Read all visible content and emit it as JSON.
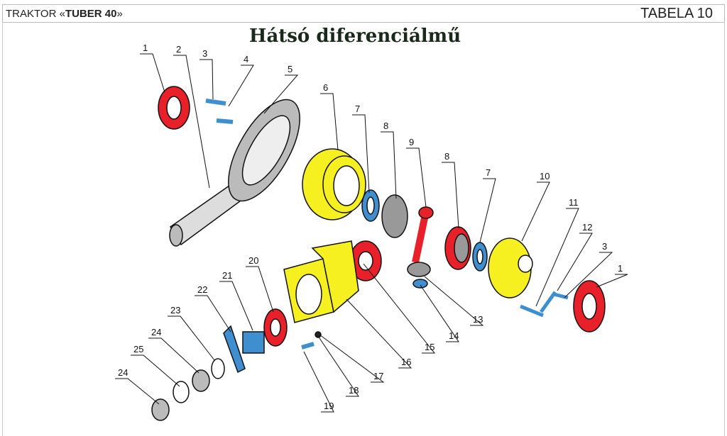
{
  "header": {
    "left_prefix": "TRAKTOR «",
    "left_bold": "TUBER  40",
    "left_suffix": "»",
    "right": "TABELA 10"
  },
  "title": "Hátsó diferenciálmű",
  "colors": {
    "red": "#e8202a",
    "yellow": "#f6f020",
    "blue": "#3f8fd0",
    "grey": "#cfcfcf"
  },
  "callouts": [
    "1",
    "2",
    "3",
    "4",
    "5",
    "6",
    "7",
    "8",
    "9",
    "8",
    "7",
    "10",
    "11",
    "12",
    "3",
    "1",
    "13",
    "14",
    "15",
    "16",
    "17",
    "18",
    "19",
    "20",
    "21",
    "22",
    "23",
    "24",
    "25",
    "24"
  ]
}
